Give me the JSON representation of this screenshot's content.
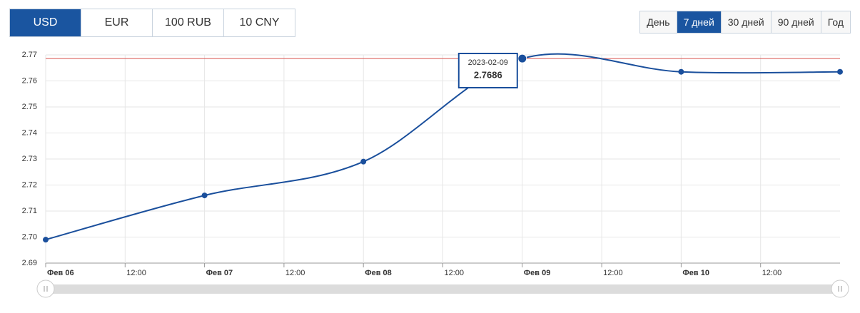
{
  "tabs": [
    "USD",
    "EUR",
    "100 RUB",
    "10 CNY"
  ],
  "active_tab": 0,
  "periods": [
    "День",
    "7 дней",
    "30 дней",
    "90 дней",
    "Год"
  ],
  "active_period": 1,
  "chart_data": {
    "type": "line",
    "x": [
      0,
      24,
      48,
      72,
      96,
      120
    ],
    "xlim": [
      0,
      120
    ],
    "xticks": [
      {
        "value": 0,
        "label": "Фев 06"
      },
      {
        "value": 12,
        "label": "12:00"
      },
      {
        "value": 24,
        "label": "Фев 07"
      },
      {
        "value": 36,
        "label": "12:00"
      },
      {
        "value": 48,
        "label": "Фев 08"
      },
      {
        "value": 60,
        "label": "12:00"
      },
      {
        "value": 72,
        "label": "Фев 09"
      },
      {
        "value": 84,
        "label": "12:00"
      },
      {
        "value": 96,
        "label": "Фев 10"
      },
      {
        "value": 108,
        "label": "12:00"
      }
    ],
    "series": [
      {
        "name": "USD",
        "color": "#1a4f9c",
        "values": [
          2.699,
          2.716,
          2.729,
          2.7686,
          2.7635,
          2.7635
        ]
      }
    ],
    "ylim": [
      2.69,
      2.77
    ],
    "yticks": [
      2.69,
      {
        "value": 2.7,
        "label": "2.70"
      },
      2.71,
      2.72,
      2.73,
      2.74,
      2.75,
      2.76,
      2.77
    ],
    "grid": true,
    "max_line": {
      "value": 2.7686,
      "color": "#d9534f"
    },
    "tooltip": {
      "point": 3,
      "date": "2023-02-09"
    }
  }
}
